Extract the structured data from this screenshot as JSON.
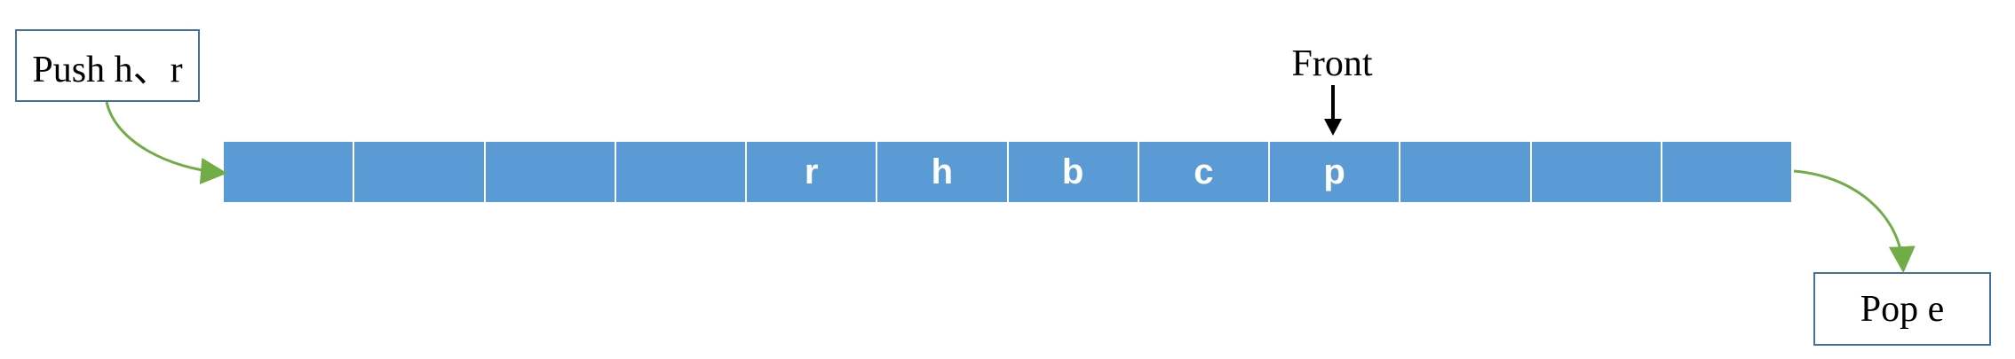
{
  "push_label": "Push h、r",
  "pop_label": "Pop e",
  "front_label": "Front",
  "queue": {
    "cells": [
      "",
      "",
      "",
      "",
      "r",
      "h",
      "b",
      "c",
      "p",
      "",
      "",
      ""
    ],
    "front_index": 8
  },
  "colors": {
    "cell_fill": "#5b9bd5",
    "cell_text": "#ffffff",
    "flow_arrow": "#70ad47",
    "front_arrow": "#000000",
    "box_border": "#41719c"
  }
}
